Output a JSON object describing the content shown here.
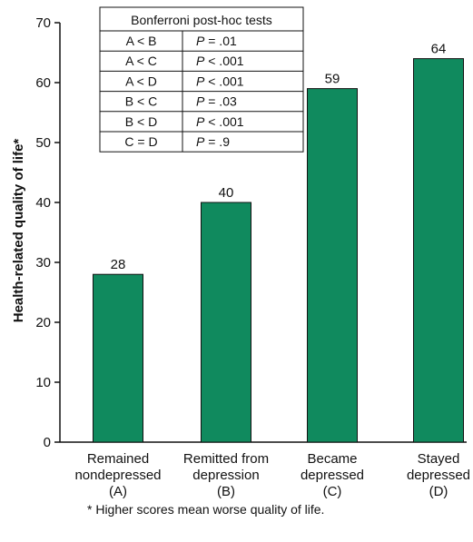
{
  "chart_data": {
    "type": "bar",
    "title": "",
    "xlabel": "",
    "ylabel": "Health-related quality of life*",
    "ylim": [
      0,
      70
    ],
    "yticks": [
      0,
      10,
      20,
      30,
      40,
      50,
      60,
      70
    ],
    "grid": false,
    "bar_color": "#108a5e",
    "categories": [
      [
        "Remained",
        "nondepressed",
        "(A)"
      ],
      [
        "Remitted from",
        "depression",
        "(B)"
      ],
      [
        "Became",
        "depressed",
        "(C)"
      ],
      [
        "Stayed",
        "depressed",
        "(D)"
      ]
    ],
    "values": [
      28,
      40,
      59,
      64
    ],
    "data_labels": [
      "28",
      "40",
      "59",
      "64"
    ],
    "footnote": "* Higher scores mean worse quality of life.",
    "table": {
      "title": "Bonferroni post-hoc tests",
      "rows": [
        {
          "comparison": "A < B",
          "p_label": "P",
          "p_text": "= .01"
        },
        {
          "comparison": "A < C",
          "p_label": "P",
          "p_text": "< .001"
        },
        {
          "comparison": "A < D",
          "p_label": "P",
          "p_text": "< .001"
        },
        {
          "comparison": "B < C",
          "p_label": "P",
          "p_text": "= .03"
        },
        {
          "comparison": "B < D",
          "p_label": "P",
          "p_text": "< .001"
        },
        {
          "comparison": "C = D",
          "p_label": "P",
          "p_text": "= .9"
        }
      ]
    }
  }
}
